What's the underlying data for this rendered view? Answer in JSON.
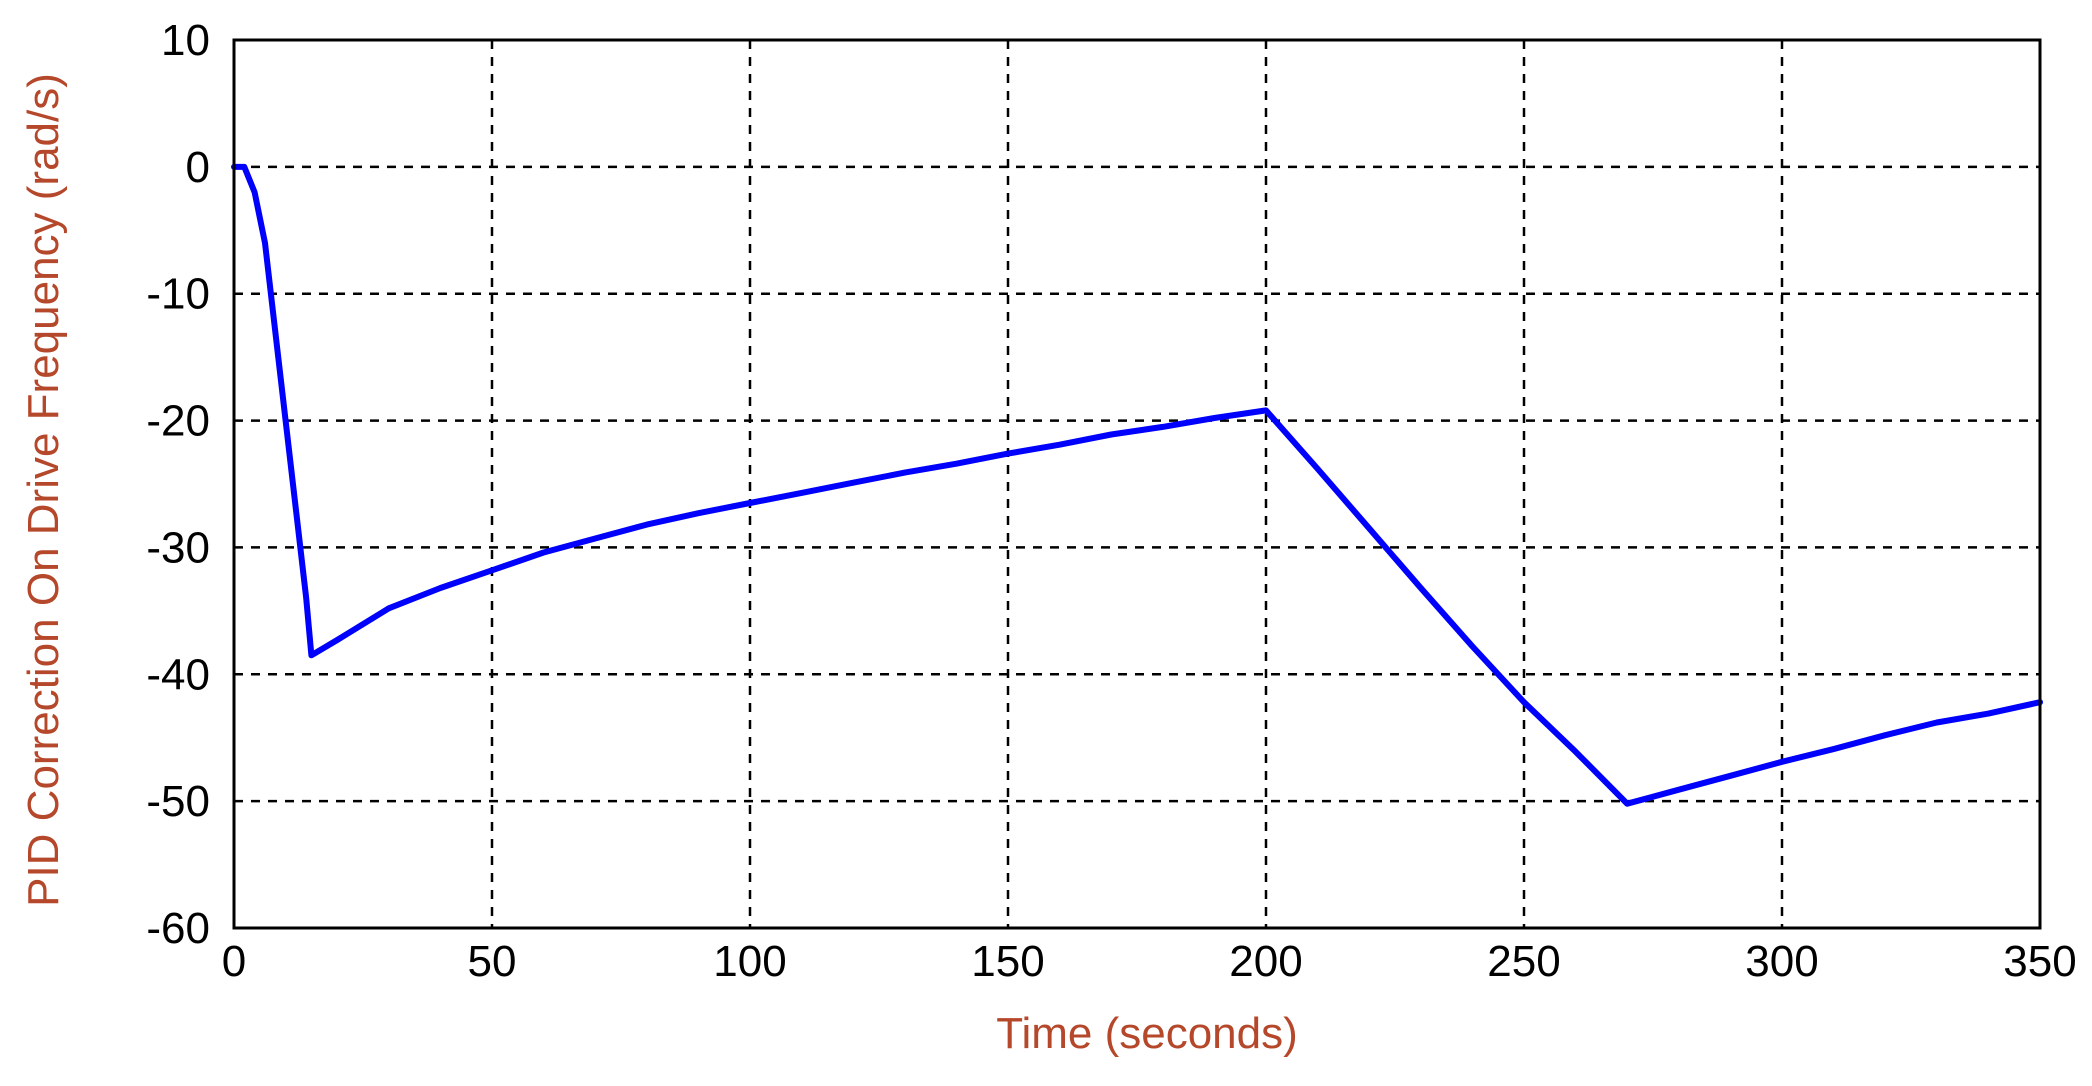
{
  "chart_data": {
    "type": "line",
    "title": "",
    "xlabel": "Time (seconds)",
    "ylabel": "PID Correction On Drive Frequency (rad/s)",
    "xlim": [
      0,
      350
    ],
    "ylim": [
      -60,
      10
    ],
    "xticks": [
      0,
      50,
      100,
      150,
      200,
      250,
      300,
      350
    ],
    "yticks": [
      10,
      0,
      -10,
      -20,
      -30,
      -40,
      -50,
      -60
    ],
    "xtick_labels": [
      "0",
      "50",
      "100",
      "150",
      "200",
      "250",
      "300",
      "350"
    ],
    "ytick_labels": [
      "10",
      "0",
      "-10",
      "-20",
      "-30",
      "-40",
      "-50",
      "-60"
    ],
    "grid": true,
    "legend": "none",
    "series": [
      {
        "color": "#0000ff",
        "x": [
          0,
          2,
          4,
          6,
          8,
          10,
          12,
          14,
          15,
          20,
          30,
          40,
          50,
          60,
          70,
          80,
          90,
          100,
          110,
          120,
          130,
          140,
          150,
          160,
          170,
          180,
          190,
          200,
          210,
          220,
          230,
          240,
          250,
          260,
          270,
          280,
          290,
          300,
          310,
          320,
          330,
          340,
          350
        ],
        "y": [
          0,
          0,
          -2,
          -6,
          -13,
          -20,
          -27,
          -34,
          -38.5,
          -37.3,
          -34.8,
          -33.2,
          -31.8,
          -30.4,
          -29.3,
          -28.2,
          -27.3,
          -26.5,
          -25.7,
          -24.9,
          -24.1,
          -23.4,
          -22.6,
          -21.9,
          -21.1,
          -20.5,
          -19.8,
          -19.2,
          -23.8,
          -28.5,
          -33.2,
          -37.8,
          -42.2,
          -46.1,
          -50.2,
          -49.1,
          -48.0,
          -46.9,
          -45.9,
          -44.8,
          -43.8,
          -43.1,
          -42.2
        ]
      }
    ]
  },
  "colors": {
    "axis_title": "#b5472a",
    "line": "#0000ff",
    "grid": "#000000",
    "background": "#ffffff"
  }
}
